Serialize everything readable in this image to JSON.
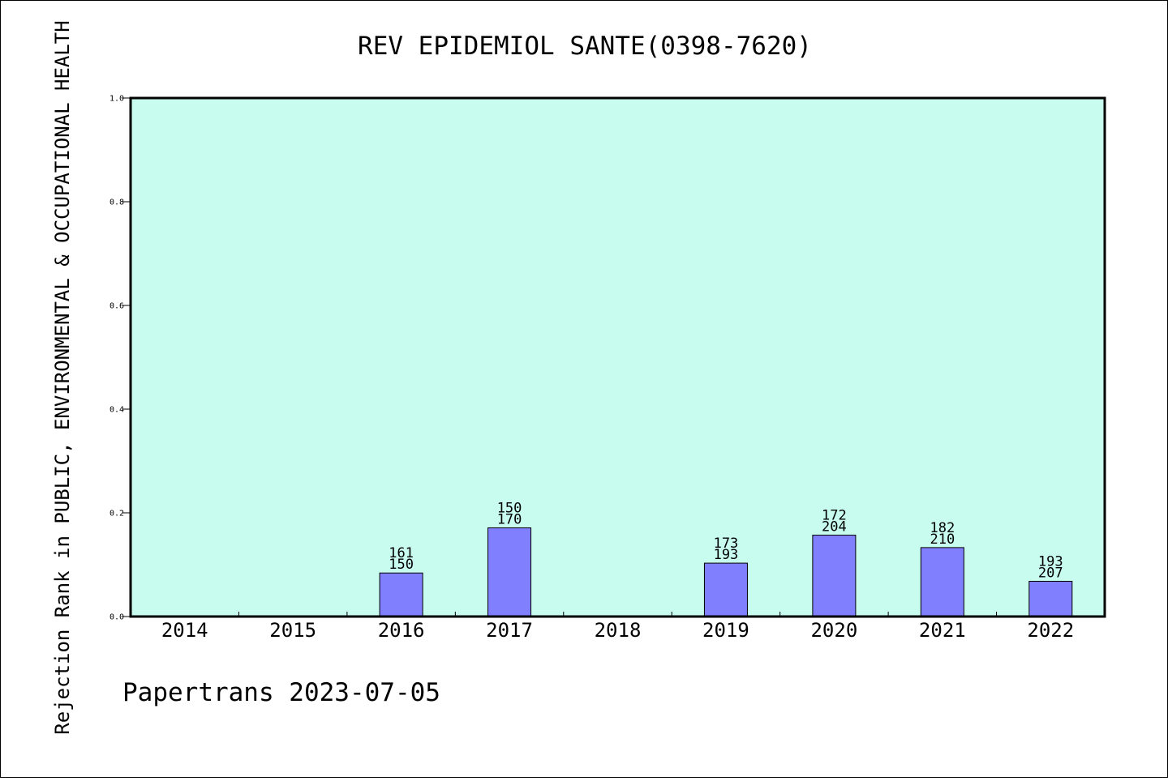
{
  "chart_data": {
    "type": "bar",
    "title": "REV EPIDEMIOL SANTE(0398-7620)",
    "ylabel": "Rejection Rank in PUBLIC, ENVIRONMENTAL & OCCUPATIONAL HEALTH",
    "xlabel": "",
    "footer": "Papertrans 2023-07-05",
    "categories": [
      "2014",
      "2015",
      "2016",
      "2017",
      "2018",
      "2019",
      "2020",
      "2021",
      "2022"
    ],
    "values": [
      null,
      null,
      0.084,
      0.171,
      null,
      0.103,
      0.157,
      0.133,
      0.068
    ],
    "label_top": [
      null,
      null,
      "161",
      "150",
      null,
      "173",
      "172",
      "182",
      "193"
    ],
    "label_bottom": [
      null,
      null,
      "150",
      "170",
      null,
      "193",
      "204",
      "210",
      "207"
    ],
    "ylim": [
      0,
      1.0
    ],
    "yticks": [
      "0.0",
      "0.2",
      "0.4",
      "0.6",
      "0.8",
      "1.0"
    ],
    "grid": false,
    "colors": {
      "plot_background": "#c8fcee",
      "bar_fill": "#8080ff",
      "bar_stroke": "#000000",
      "axis": "#000000"
    }
  }
}
